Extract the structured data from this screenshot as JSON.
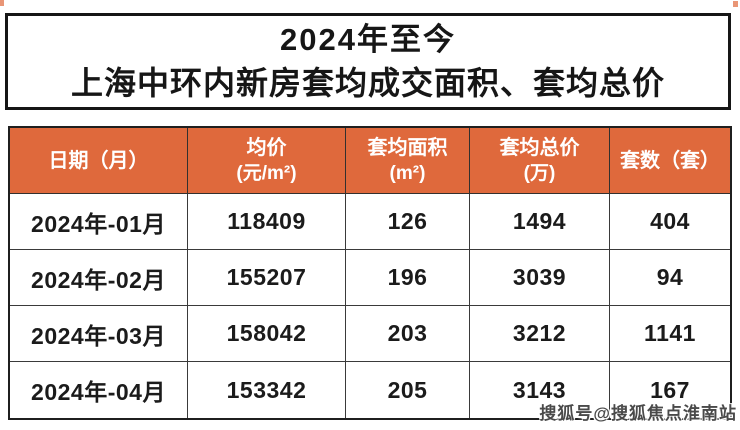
{
  "title": {
    "line1": "2024年至今",
    "line2": "上海中环内新房套均成交面积、套均总价"
  },
  "chart_data": {
    "type": "table",
    "title": "2024年至今 上海中环内新房套均成交面积、套均总价",
    "columns": [
      {
        "line1": "日期（月）",
        "line2": ""
      },
      {
        "line1": "均价",
        "line2": "(元/m²)"
      },
      {
        "line1": "套均面积",
        "line2": "(m²)"
      },
      {
        "line1": "套均总价",
        "line2": "(万)"
      },
      {
        "line1": "套数（套）",
        "line2": ""
      }
    ],
    "rows": [
      {
        "date": "2024年-01月",
        "avg_price": "118409",
        "avg_area": "126",
        "avg_total": "1494",
        "units": "404"
      },
      {
        "date": "2024年-02月",
        "avg_price": "155207",
        "avg_area": "196",
        "avg_total": "3039",
        "units": "94"
      },
      {
        "date": "2024年-03月",
        "avg_price": "158042",
        "avg_area": "203",
        "avg_total": "3212",
        "units": "1141"
      },
      {
        "date": "2024年-04月",
        "avg_price": "153342",
        "avg_area": "205",
        "avg_total": "3143",
        "units": "167"
      }
    ]
  },
  "watermark": {
    "text": "搜狐号@搜狐焦点淮南站"
  },
  "colors": {
    "header_bg": "#df693c",
    "border": "#1f1f1f",
    "text": "#161616",
    "watermark_text": "#4a4a4a"
  }
}
